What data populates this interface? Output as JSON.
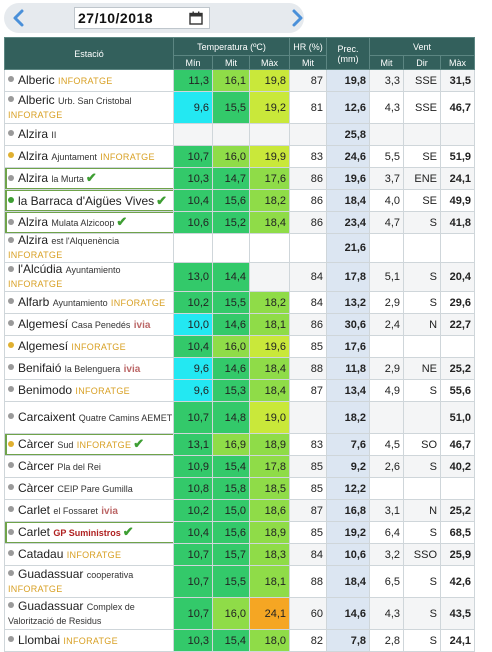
{
  "date_nav": {
    "date": "27/10/2018",
    "prev_icon": "chevron-left-icon",
    "next_icon": "chevron-right-icon",
    "calendar_icon": "calendar-icon"
  },
  "colors": {
    "header_bg": "#33605c",
    "precip_bg": "#dce6f2",
    "temp_cyan": "#23e8f2",
    "temp_green": "#33c96a",
    "temp_lightgreen": "#8fdc48",
    "temp_yellowgreen": "#c9e83a",
    "temp_orange": "#f5a623",
    "dot_grey": "#9a9a9a",
    "dot_gold": "#e0b030",
    "dot_green": "#3e9e33"
  },
  "table": {
    "headers": {
      "station": "Estació",
      "temp": "Temperatura (ºC)",
      "hr": "HR (%)",
      "prec": "Prec. (mm)",
      "wind": "Vent",
      "temp_min": "Mín",
      "temp_mit": "Mit",
      "temp_max": "Màx",
      "hr_mit": "Mit",
      "wind_mit": "Mit",
      "wind_dir": "Dir",
      "wind_max": "Màx"
    },
    "rows": [
      {
        "name": "Alberic",
        "sub": "",
        "net": "INFORATGE",
        "dot": "grey",
        "check": false,
        "boxed": false,
        "tall": false,
        "tmin": "11,3",
        "tmit": "16,1",
        "tmax": "19,8",
        "cmin": "green",
        "cmit": "lightgreen",
        "cmax": "yellowgreen",
        "hr": "87",
        "prec": "19,8",
        "vmit": "3,3",
        "dir": "SSE",
        "vmax": "31,5"
      },
      {
        "name": "Alberic",
        "sub": "Urb. San Cristobal",
        "net": "INFORATGE",
        "dot": "grey",
        "check": false,
        "boxed": false,
        "tall": true,
        "tmin": "9,6",
        "tmit": "15,5",
        "tmax": "19,2",
        "cmin": "cyan",
        "cmit": "green",
        "cmax": "yellowgreen",
        "hr": "81",
        "prec": "12,6",
        "vmit": "4,3",
        "dir": "SSE",
        "vmax": "46,7"
      },
      {
        "name": "Alzira",
        "sub": "II",
        "net": "",
        "dot": "grey",
        "check": false,
        "boxed": false,
        "tall": false,
        "tmin": "",
        "tmit": "",
        "tmax": "",
        "cmin": "",
        "cmit": "",
        "cmax": "",
        "hr": "",
        "prec": "25,8",
        "vmit": "",
        "dir": "",
        "vmax": ""
      },
      {
        "name": "Alzira",
        "sub": "Ajuntament",
        "net": "INFORATGE",
        "dot": "gold",
        "check": false,
        "boxed": false,
        "tall": false,
        "tmin": "10,7",
        "tmit": "16,0",
        "tmax": "19,9",
        "cmin": "green",
        "cmit": "lightgreen",
        "cmax": "yellowgreen",
        "hr": "83",
        "prec": "24,6",
        "vmit": "5,5",
        "dir": "SE",
        "vmax": "51,9"
      },
      {
        "name": "Alzira",
        "sub": "la Murta",
        "net": "",
        "dot": "grey",
        "check": true,
        "boxed": true,
        "tall": false,
        "tmin": "10,3",
        "tmit": "14,7",
        "tmax": "17,6",
        "cmin": "green",
        "cmit": "green",
        "cmax": "lightgreen",
        "hr": "86",
        "prec": "19,6",
        "vmit": "3,7",
        "dir": "ENE",
        "vmax": "24,1"
      },
      {
        "name": "la Barraca d'Aigües Vives",
        "sub": "",
        "net": "",
        "dot": "green",
        "check": true,
        "boxed": true,
        "tall": false,
        "tmin": "10,4",
        "tmit": "15,6",
        "tmax": "18,2",
        "cmin": "green",
        "cmit": "green",
        "cmax": "lightgreen",
        "hr": "86",
        "prec": "18,4",
        "vmit": "4,0",
        "dir": "SE",
        "vmax": "49,9"
      },
      {
        "name": "Alzira",
        "sub": "Mulata Alzicoop",
        "net": "",
        "dot": "grey",
        "check": true,
        "boxed": true,
        "tall": false,
        "tmin": "10,6",
        "tmit": "15,2",
        "tmax": "18,4",
        "cmin": "green",
        "cmit": "green",
        "cmax": "lightgreen",
        "hr": "86",
        "prec": "23,4",
        "vmit": "4,7",
        "dir": "S",
        "vmax": "41,8"
      },
      {
        "name": "Alzira",
        "sub": "est l'Alquenència",
        "net": "INFORATGE",
        "dot": "grey",
        "check": false,
        "boxed": false,
        "tall": false,
        "tmin": "",
        "tmit": "",
        "tmax": "",
        "cmin": "",
        "cmit": "",
        "cmax": "",
        "hr": "",
        "prec": "21,6",
        "vmit": "",
        "dir": "",
        "vmax": ""
      },
      {
        "name": "l'Alcúdia",
        "sub": "Ayuntamiento",
        "net": "INFORATGE",
        "dot": "grey",
        "check": false,
        "boxed": false,
        "tall": false,
        "tmin": "13,0",
        "tmit": "14,4",
        "tmax": "",
        "cmin": "green",
        "cmit": "green",
        "cmax": "",
        "hr": "84",
        "prec": "17,8",
        "vmit": "5,1",
        "dir": "S",
        "vmax": "20,4"
      },
      {
        "name": "Alfarb",
        "sub": "Ayuntamiento",
        "net": "INFORATGE",
        "dot": "grey",
        "check": false,
        "boxed": false,
        "tall": false,
        "tmin": "10,2",
        "tmit": "15,5",
        "tmax": "18,2",
        "cmin": "green",
        "cmit": "green",
        "cmax": "lightgreen",
        "hr": "84",
        "prec": "13,2",
        "vmit": "2,9",
        "dir": "S",
        "vmax": "29,6"
      },
      {
        "name": "Algemesí",
        "sub": "Casa Penedés",
        "net": "ivia",
        "dot": "grey",
        "check": false,
        "boxed": false,
        "tall": false,
        "tmin": "10,0",
        "tmit": "14,6",
        "tmax": "18,1",
        "cmin": "cyan",
        "cmit": "green",
        "cmax": "lightgreen",
        "hr": "86",
        "prec": "30,6",
        "vmit": "2,4",
        "dir": "N",
        "vmax": "22,7"
      },
      {
        "name": "Algemesí",
        "sub": "",
        "net": "INFORATGE",
        "dot": "gold",
        "check": false,
        "boxed": false,
        "tall": false,
        "tmin": "10,4",
        "tmit": "16,0",
        "tmax": "19,6",
        "cmin": "green",
        "cmit": "lightgreen",
        "cmax": "yellowgreen",
        "hr": "85",
        "prec": "17,6",
        "vmit": "",
        "dir": "",
        "vmax": ""
      },
      {
        "name": "Benifaió",
        "sub": "la Belenguera",
        "net": "ivia",
        "dot": "grey",
        "check": false,
        "boxed": false,
        "tall": false,
        "tmin": "9,6",
        "tmit": "14,6",
        "tmax": "18,4",
        "cmin": "cyan",
        "cmit": "green",
        "cmax": "lightgreen",
        "hr": "88",
        "prec": "11,8",
        "vmit": "2,9",
        "dir": "NE",
        "vmax": "25,2"
      },
      {
        "name": "Benimodo",
        "sub": "",
        "net": "INFORATGE",
        "dot": "grey",
        "check": false,
        "boxed": false,
        "tall": false,
        "tmin": "9,6",
        "tmit": "15,3",
        "tmax": "18,4",
        "cmin": "cyan",
        "cmit": "green",
        "cmax": "lightgreen",
        "hr": "87",
        "prec": "13,4",
        "vmit": "4,9",
        "dir": "S",
        "vmax": "55,6"
      },
      {
        "name": "Carcaixent",
        "sub": "Quatre Camins AEMET",
        "net": "",
        "dot": "grey",
        "check": false,
        "boxed": false,
        "tall": true,
        "tmin": "10,7",
        "tmit": "14,8",
        "tmax": "19,0",
        "cmin": "green",
        "cmit": "green",
        "cmax": "yellowgreen",
        "hr": "",
        "prec": "18,2",
        "vmit": "",
        "dir": "",
        "vmax": "51,0"
      },
      {
        "name": "Càrcer",
        "sub": "Sud",
        "net": "INFORATGE",
        "dot": "gold",
        "check": true,
        "boxed": true,
        "tall": false,
        "tmin": "13,1",
        "tmit": "16,9",
        "tmax": "18,9",
        "cmin": "green",
        "cmit": "lightgreen",
        "cmax": "lightgreen",
        "hr": "83",
        "prec": "7,6",
        "vmit": "4,5",
        "dir": "SO",
        "vmax": "46,7"
      },
      {
        "name": "Càrcer",
        "sub": "Pla del Rei",
        "net": "",
        "dot": "grey",
        "check": false,
        "boxed": false,
        "tall": false,
        "tmin": "10,9",
        "tmit": "15,4",
        "tmax": "17,8",
        "cmin": "green",
        "cmit": "green",
        "cmax": "lightgreen",
        "hr": "85",
        "prec": "9,2",
        "vmit": "2,6",
        "dir": "S",
        "vmax": "40,2"
      },
      {
        "name": "Càrcer",
        "sub": "CEIP Pare Gumilla",
        "net": "",
        "dot": "grey",
        "check": false,
        "boxed": false,
        "tall": false,
        "tmin": "10,8",
        "tmit": "15,8",
        "tmax": "18,5",
        "cmin": "green",
        "cmit": "green",
        "cmax": "lightgreen",
        "hr": "85",
        "prec": "12,2",
        "vmit": "",
        "dir": "",
        "vmax": ""
      },
      {
        "name": "Carlet",
        "sub": "el Fossaret",
        "net": "ivia",
        "dot": "grey",
        "check": false,
        "boxed": false,
        "tall": false,
        "tmin": "10,2",
        "tmit": "15,0",
        "tmax": "18,6",
        "cmin": "green",
        "cmit": "green",
        "cmax": "lightgreen",
        "hr": "87",
        "prec": "16,8",
        "vmit": "3,1",
        "dir": "N",
        "vmax": "25,2"
      },
      {
        "name": "Carlet",
        "sub": "",
        "net": "GP Suministros",
        "dot": "grey",
        "check": true,
        "boxed": true,
        "tall": false,
        "tmin": "10,4",
        "tmit": "15,6",
        "tmax": "18,9",
        "cmin": "green",
        "cmit": "green",
        "cmax": "lightgreen",
        "hr": "85",
        "prec": "19,2",
        "vmit": "6,4",
        "dir": "S",
        "vmax": "68,5"
      },
      {
        "name": "Catadau",
        "sub": "",
        "net": "INFORATGE",
        "dot": "grey",
        "check": false,
        "boxed": false,
        "tall": false,
        "tmin": "10,7",
        "tmit": "15,7",
        "tmax": "18,3",
        "cmin": "green",
        "cmit": "green",
        "cmax": "lightgreen",
        "hr": "84",
        "prec": "10,6",
        "vmit": "3,2",
        "dir": "SSO",
        "vmax": "25,9"
      },
      {
        "name": "Guadassuar",
        "sub": "cooperativa",
        "net": "INFORATGE",
        "dot": "grey",
        "check": false,
        "boxed": false,
        "tall": true,
        "tmin": "10,7",
        "tmit": "15,5",
        "tmax": "18,1",
        "cmin": "green",
        "cmit": "green",
        "cmax": "lightgreen",
        "hr": "88",
        "prec": "18,4",
        "vmit": "6,5",
        "dir": "S",
        "vmax": "42,6"
      },
      {
        "name": "Guadassuar",
        "sub": "Complex de Valorització de Residus",
        "net": "",
        "dot": "grey",
        "check": false,
        "boxed": false,
        "tall": true,
        "tmin": "10,7",
        "tmit": "16,0",
        "tmax": "24,1",
        "cmin": "green",
        "cmit": "lightgreen",
        "cmax": "orange",
        "hr": "60",
        "prec": "14,6",
        "vmit": "4,3",
        "dir": "S",
        "vmax": "43,5"
      },
      {
        "name": "Llombai",
        "sub": "",
        "net": "INFORATGE",
        "dot": "grey",
        "check": false,
        "boxed": false,
        "tall": false,
        "tmin": "10,3",
        "tmit": "15,4",
        "tmax": "18,0",
        "cmin": "green",
        "cmit": "green",
        "cmax": "lightgreen",
        "hr": "82",
        "prec": "7,8",
        "vmit": "2,8",
        "dir": "S",
        "vmax": "24,1"
      }
    ]
  }
}
